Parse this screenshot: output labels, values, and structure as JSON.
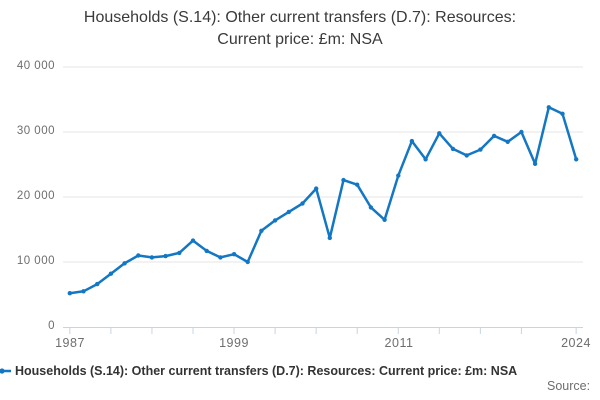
{
  "title": {
    "line1": "Households (S.14): Other current transfers (D.7): Resources:",
    "line2": "Current price: £m: NSA"
  },
  "legend": {
    "series_label": "Households (S.14): Other current transfers (D.7): Resources: Current price: £m: NSA"
  },
  "source_label": "Source:",
  "colors": {
    "series_blue": "#1377c4",
    "gridline": "#e4e4e4",
    "axis_line": "#c9d4e3",
    "text_dark": "#3a3a3c",
    "text_gray": "#6e6e70"
  },
  "chart_data": {
    "type": "line",
    "title": "Households (S.14): Other current transfers (D.7): Resources: Current price: £m: NSA",
    "x": [
      1987,
      1988,
      1989,
      1990,
      1991,
      1992,
      1993,
      1994,
      1995,
      1996,
      1997,
      1998,
      1999,
      2000,
      2001,
      2002,
      2003,
      2004,
      2005,
      2006,
      2007,
      2008,
      2009,
      2010,
      2011,
      2012,
      2013,
      2014,
      2015,
      2016,
      2017,
      2018,
      2019,
      2020,
      2021,
      2022,
      2023,
      2024
    ],
    "values": [
      5200,
      5500,
      6600,
      8200,
      9800,
      11000,
      10700,
      10900,
      11400,
      13300,
      11700,
      10700,
      11200,
      10000,
      14800,
      16400,
      17700,
      19000,
      21300,
      13700,
      22600,
      21900,
      18400,
      16500,
      23300,
      28600,
      25800,
      29800,
      27400,
      26400,
      27300,
      29400,
      28500,
      30000,
      25100,
      33800,
      32800,
      25800
    ],
    "xlabel": "",
    "ylabel": "",
    "ylim": [
      0,
      40000
    ],
    "grid": "horizontal-only",
    "legend_position": "bottom-left",
    "xticks": [
      1987,
      1990,
      1993,
      1996,
      1999,
      2002,
      2005,
      2008,
      2011,
      2014,
      2017,
      2020,
      2024
    ],
    "xtick_labels_shown": [
      "1987",
      "1999",
      "2011",
      "2024"
    ],
    "ytick_labels": [
      "0",
      "10 000",
      "20 000",
      "30 000",
      "40 000"
    ],
    "marker": "circle"
  }
}
